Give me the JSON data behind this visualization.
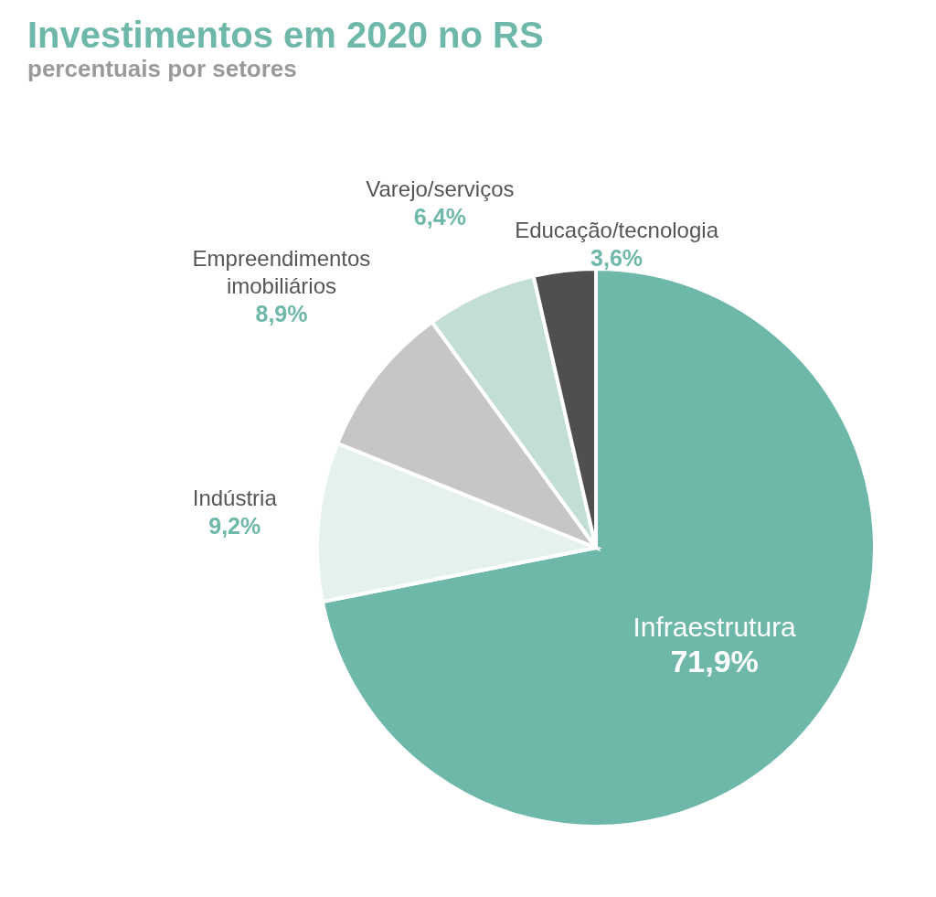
{
  "chart_data": {
    "type": "pie",
    "title": "Investimentos em 2020 no RS",
    "subtitle": "percentuais por setores",
    "categories": [
      "Infraestrutura",
      "Indústria",
      "Empreendimentos imobiliários",
      "Varejo/serviços",
      "Educação/tecnologia"
    ],
    "values": [
      71.9,
      9.2,
      8.9,
      6.4,
      3.6
    ],
    "value_labels": [
      "71,9%",
      "9,2%",
      "8,9%",
      "6,4%",
      "3,6%"
    ],
    "colors": [
      "#6db8a9",
      "#e4f1ee",
      "#c6c6c6",
      "#c3ded7",
      "#4f4f4f"
    ]
  }
}
